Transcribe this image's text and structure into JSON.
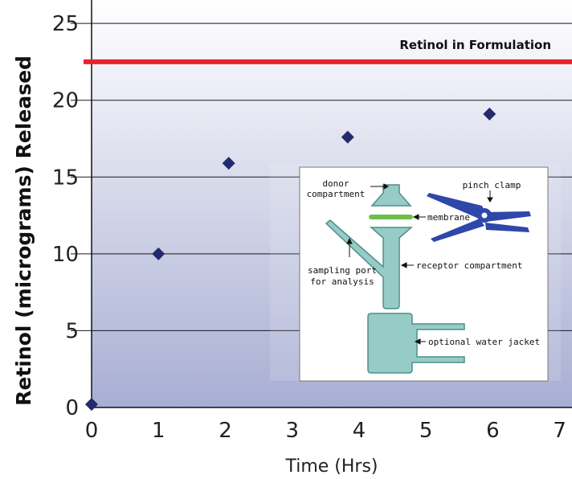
{
  "chart_data": {
    "type": "scatter",
    "xlabel": "Time (Hrs)",
    "ylabel": "Retinol (micrograms) Released",
    "xlim": [
      0,
      7.1
    ],
    "ylim": [
      0,
      26
    ],
    "xticks": [
      "0",
      "1",
      "2",
      "3",
      "4",
      "5",
      "6",
      "7"
    ],
    "yticks": [
      "0",
      "5",
      "10",
      "15",
      "20",
      "25"
    ],
    "grid": "horizontal",
    "points": [
      {
        "x": 0,
        "y": 0.2
      },
      {
        "x": 1,
        "y": 10
      },
      {
        "x": 2.05,
        "y": 15.9
      },
      {
        "x": 3.83,
        "y": 17.6
      },
      {
        "x": 5.95,
        "y": 19.1
      }
    ],
    "reference_line": {
      "y": 22.5,
      "label": "Retinol in Formulation",
      "color": "#e8232a"
    },
    "marker_color": "#232a6e",
    "background_gradient": [
      "#ffffff",
      "#a8aed3"
    ],
    "inset_diagram": {
      "labels": {
        "donor": [
          "donor",
          "compartment"
        ],
        "pinch_clamp": "pinch clamp",
        "membrane": "membrane",
        "receptor": "receptor compartment",
        "sampling": [
          "sampling port",
          "for analysis"
        ],
        "water_jacket": "optional water jacket"
      },
      "colors": {
        "glass": "#96cbc6",
        "glass_stroke": "#4e8f8a",
        "membrane": "#6cc04a",
        "clamp": "#2f47a8"
      }
    }
  }
}
